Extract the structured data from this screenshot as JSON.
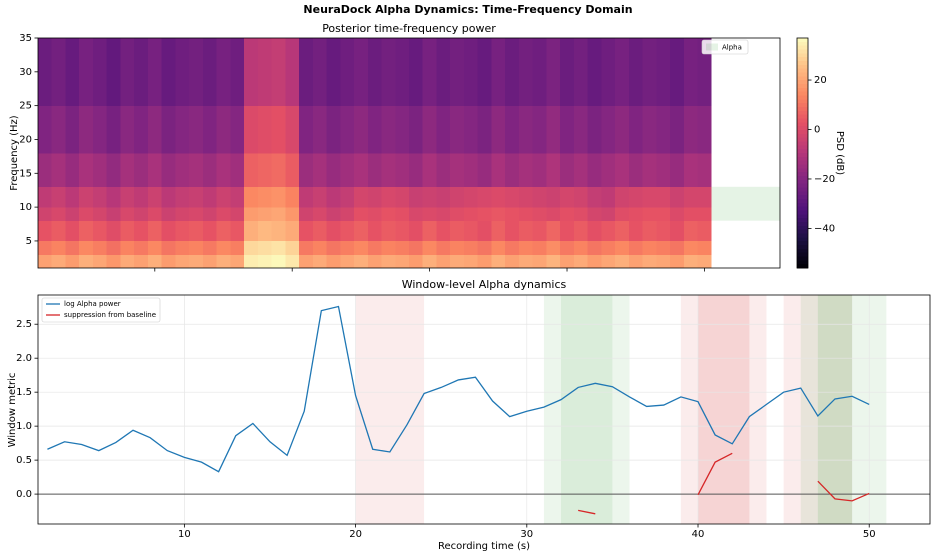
{
  "title": "NeuraDock Alpha Dynamics: Time-Frequency Domain",
  "chart_data": [
    {
      "type": "heatmap",
      "title": "Posterior time-frequency power",
      "y_label": "Frequency (Hz)",
      "xlim": [
        1.5,
        55.5
      ],
      "xticks": [
        10,
        20,
        30,
        40,
        50
      ],
      "xtick_labels": false,
      "ylim": [
        1,
        35
      ],
      "yticks": [
        5,
        10,
        15,
        20,
        25,
        30,
        35
      ],
      "x": [
        2,
        3,
        4,
        5,
        6,
        7,
        8,
        9,
        10,
        11,
        12,
        13,
        14,
        15,
        16,
        17,
        18,
        19,
        20,
        21,
        22,
        23,
        24,
        25,
        26,
        27,
        28,
        29,
        30,
        31,
        32,
        33,
        34,
        35,
        36,
        37,
        38,
        39,
        40,
        41,
        42,
        43,
        44,
        45,
        46,
        47,
        48,
        49,
        50
      ],
      "freq_edges": [
        1,
        3,
        5,
        8,
        10,
        13,
        18,
        25,
        35
      ],
      "z": [
        [
          19,
          21,
          18,
          22,
          20,
          17,
          21,
          19,
          22,
          18,
          20,
          21,
          19,
          22,
          20,
          34,
          35,
          36,
          33,
          19,
          21,
          18,
          20,
          22,
          19,
          21,
          20,
          18,
          22,
          19,
          21,
          20,
          18,
          22,
          19,
          21,
          20,
          23,
          19,
          21,
          18,
          20,
          22,
          19,
          21,
          20,
          18,
          22,
          21
        ],
        [
          11,
          13,
          10,
          14,
          12,
          9,
          13,
          11,
          14,
          10,
          12,
          13,
          11,
          14,
          12,
          30,
          31,
          32,
          29,
          11,
          13,
          10,
          12,
          14,
          11,
          13,
          12,
          10,
          14,
          11,
          13,
          12,
          10,
          14,
          11,
          13,
          12,
          15,
          11,
          13,
          10,
          12,
          14,
          11,
          13,
          12,
          10,
          14,
          13
        ],
        [
          3,
          5,
          2,
          6,
          4,
          1,
          5,
          3,
          6,
          2,
          4,
          5,
          3,
          6,
          4,
          22,
          24,
          23,
          21,
          3,
          5,
          2,
          4,
          6,
          3,
          5,
          4,
          2,
          6,
          3,
          5,
          4,
          2,
          6,
          3,
          5,
          4,
          7,
          3,
          5,
          2,
          4,
          6,
          3,
          5,
          4,
          2,
          6,
          5
        ],
        [
          -3,
          -1,
          -4,
          0,
          -2,
          -5,
          -1,
          -3,
          0,
          -4,
          -2,
          -1,
          -3,
          0,
          -2,
          18,
          19,
          20,
          17,
          -3,
          -1,
          -4,
          -2,
          2,
          1,
          3,
          2,
          -1,
          0,
          -1,
          1,
          2,
          3,
          4,
          3,
          2,
          1,
          0,
          2,
          1,
          -2,
          -3,
          1,
          2,
          3,
          3,
          0,
          2,
          2
        ],
        [
          -7,
          -5,
          -8,
          -4,
          -6,
          -9,
          -5,
          -7,
          -4,
          -8,
          -6,
          -5,
          -7,
          -4,
          -6,
          14,
          15,
          16,
          13,
          -7,
          -5,
          -8,
          -6,
          -2,
          -3,
          -1,
          -2,
          -5,
          -4,
          -5,
          -3,
          -2,
          -1,
          0,
          -1,
          -2,
          -3,
          -4,
          -2,
          -3,
          -6,
          -7,
          -3,
          -2,
          -1,
          -1,
          -4,
          -2,
          -2
        ],
        [
          -15,
          -13,
          -16,
          -12,
          -14,
          -17,
          -13,
          -15,
          -12,
          -16,
          -14,
          -13,
          -15,
          -12,
          -14,
          6,
          7,
          8,
          5,
          -15,
          -13,
          -16,
          -14,
          -12,
          -15,
          -13,
          -14,
          -16,
          -12,
          -15,
          -13,
          -14,
          -16,
          -12,
          -15,
          -13,
          -14,
          -11,
          -15,
          -13,
          -16,
          -14,
          -12,
          -15,
          -13,
          -14,
          -16,
          -12,
          -13
        ],
        [
          -21,
          -19,
          -22,
          -18,
          -20,
          -23,
          -19,
          -21,
          -18,
          -22,
          -20,
          -19,
          -21,
          -18,
          -20,
          0,
          1,
          2,
          -1,
          -21,
          -19,
          -22,
          -20,
          -18,
          -21,
          -19,
          -20,
          -22,
          -18,
          -21,
          -19,
          -20,
          -22,
          -18,
          -21,
          -19,
          -20,
          -17,
          -21,
          -19,
          -22,
          -20,
          -18,
          -21,
          -19,
          -20,
          -22,
          -18,
          -19
        ],
        [
          -26,
          -24,
          -27,
          -23,
          -25,
          -28,
          -24,
          -26,
          -23,
          -27,
          -25,
          -24,
          -26,
          -23,
          -25,
          -8,
          -7,
          -6,
          -9,
          -26,
          -24,
          -27,
          -25,
          -23,
          -26,
          -24,
          -25,
          -27,
          -23,
          -26,
          -24,
          -25,
          -27,
          -23,
          -26,
          -24,
          -25,
          -22,
          -26,
          -24,
          -27,
          -25,
          -23,
          -26,
          -24,
          -25,
          -27,
          -23,
          -24
        ]
      ],
      "colormap": "magma",
      "colorbar": {
        "label": "PSD (dB)",
        "clim": [
          -56,
          37
        ],
        "ticks": [
          {
            "value": -40,
            "label": "−40"
          },
          {
            "value": -20,
            "label": "−20"
          },
          0,
          20
        ]
      },
      "alpha_band": [
        8,
        13
      ],
      "alpha_label": "Alpha",
      "alpha_color": "#2ca02c",
      "alpha_opacity": 0.12,
      "legend": "upper right"
    },
    {
      "type": "line",
      "title": "Window-level Alpha dynamics",
      "x_label": "Recording time (s)",
      "y_label": "Window metric",
      "xlim": [
        1.45,
        53.55
      ],
      "xticks": [
        10,
        20,
        30,
        40,
        50
      ],
      "ylim": [
        -0.44,
        2.93
      ],
      "yticks": [
        {
          "value": 0,
          "label": "0.0"
        },
        {
          "value": 0.5,
          "label": "0.5"
        },
        {
          "value": 1,
          "label": "1.0"
        },
        {
          "value": 1.5,
          "label": "1.5"
        },
        {
          "value": 2,
          "label": "2.0"
        },
        {
          "value": 2.5,
          "label": "2.5"
        }
      ],
      "grid": true,
      "legend": "upper left",
      "hline": 0,
      "x": [
        2,
        3,
        4,
        5,
        6,
        7,
        8,
        9,
        10,
        11,
        12,
        13,
        14,
        15,
        16,
        17,
        18,
        19,
        20,
        21,
        22,
        23,
        24,
        25,
        26,
        27,
        28,
        29,
        30,
        31,
        32,
        33,
        34,
        35,
        36,
        37,
        38,
        39,
        40,
        41,
        42,
        43,
        44,
        45,
        46,
        47,
        48,
        49,
        50
      ],
      "series": [
        {
          "name": "log Alpha power",
          "color": "#1f77b4",
          "values": [
            0.66,
            0.77,
            0.73,
            0.64,
            0.76,
            0.94,
            0.83,
            0.64,
            0.54,
            0.47,
            0.33,
            0.86,
            1.04,
            0.77,
            0.57,
            1.22,
            2.7,
            2.76,
            1.45,
            0.66,
            0.62,
            1.02,
            1.48,
            1.57,
            1.68,
            1.72,
            1.37,
            1.14,
            1.22,
            1.28,
            1.39,
            1.57,
            1.63,
            1.58,
            1.43,
            1.29,
            1.31,
            1.43,
            1.36,
            0.87,
            0.74,
            1.14,
            1.32,
            1.5,
            1.56,
            1.15,
            1.4,
            1.44,
            1.32
          ]
        },
        {
          "name": "suppression from baseline",
          "color": "#d62728",
          "values": [
            null,
            null,
            null,
            null,
            null,
            null,
            null,
            null,
            null,
            null,
            null,
            null,
            null,
            null,
            null,
            null,
            null,
            null,
            null,
            null,
            null,
            null,
            null,
            null,
            null,
            null,
            null,
            null,
            null,
            null,
            null,
            -0.24,
            -0.29,
            null,
            null,
            null,
            null,
            null,
            -0.01,
            0.47,
            0.6,
            null,
            null,
            null,
            null,
            0.19,
            -0.07,
            -0.1,
            0.01
          ]
        }
      ],
      "spans": [
        {
          "start": 20,
          "end": 24,
          "color": "#d62728",
          "alpha": 0.09
        },
        {
          "start": 31,
          "end": 36,
          "color": "#2ca02c",
          "alpha": 0.09
        },
        {
          "start": 32,
          "end": 35,
          "color": "#2ca02c",
          "alpha": 0.09
        },
        {
          "start": 39,
          "end": 44,
          "color": "#d62728",
          "alpha": 0.09
        },
        {
          "start": 40,
          "end": 43,
          "color": "#d62728",
          "alpha": 0.12
        },
        {
          "start": 45,
          "end": 49,
          "color": "#d62728",
          "alpha": 0.09
        },
        {
          "start": 46,
          "end": 51,
          "color": "#2ca02c",
          "alpha": 0.09
        },
        {
          "start": 47,
          "end": 49,
          "color": "#2ca02c",
          "alpha": 0.12
        }
      ]
    }
  ]
}
